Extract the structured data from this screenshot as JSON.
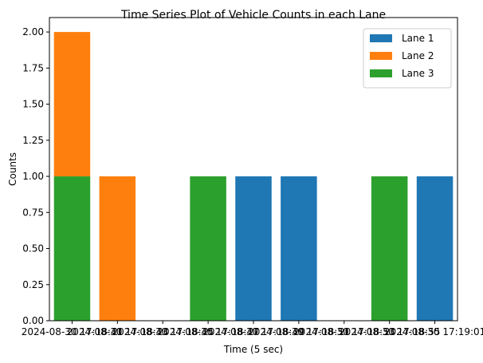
{
  "chart_data": {
    "type": "bar",
    "stacked": true,
    "title": "Time Series Plot of Vehicle Counts in each Lane",
    "xlabel": "Time (5 sec)",
    "ylabel": "Counts",
    "ylim": [
      0,
      2.1
    ],
    "yticks": [
      "0.00",
      "0.25",
      "0.50",
      "0.75",
      "1.00",
      "1.25",
      "1.50",
      "1.75",
      "2.00"
    ],
    "categories": [
      "2024-08-30 17:18:41",
      "2024-08-30 17:18:43",
      "2024-08-30 17:18:45",
      "2024-08-30 17:18:47",
      "2024-08-30 17:18:49",
      "2024-08-30 17:18:51",
      "2024-08-30 17:18:53",
      "2024-08-30 17:18:55",
      "2024-08-30 17:19:01"
    ],
    "series": [
      {
        "name": "Lane 1",
        "color": "#1f77b4",
        "values": [
          0,
          0,
          0,
          0,
          1,
          1,
          0,
          0,
          1
        ]
      },
      {
        "name": "Lane 2",
        "color": "#ff7f0e",
        "values": [
          1,
          1,
          0,
          0,
          0,
          0,
          0,
          0,
          0
        ]
      },
      {
        "name": "Lane 3",
        "color": "#2ca02c",
        "values": [
          1,
          0,
          0,
          1,
          0,
          0,
          0,
          1,
          0
        ]
      }
    ],
    "stack_order": [
      "Lane 3",
      "Lane 1",
      "Lane 2"
    ],
    "legend": "top-right",
    "grid": false
  }
}
